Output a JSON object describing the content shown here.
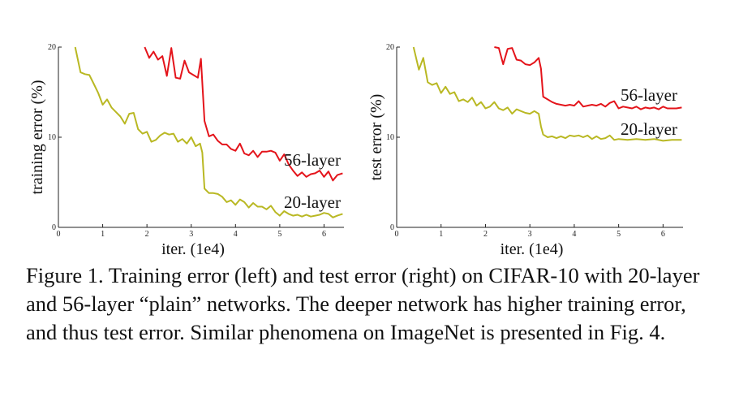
{
  "caption": "Figure 1. Training error (left) and test error (right) on CIFAR-10 with 20-layer and 56-layer “plain” networks. The deeper network has higher training error, and thus test error.  Similar phenomena on ImageNet is presented in Fig. 4.",
  "colors": {
    "red": "#e4141b",
    "olive": "#b9b823",
    "axis": "#222222"
  },
  "chart_data": [
    {
      "type": "line",
      "xlabel": "iter. (1e4)",
      "ylabel": "training error (%)",
      "xlim": [
        0,
        6.45
      ],
      "ylim": [
        0,
        20
      ],
      "xticks": [
        0,
        1,
        2,
        3,
        4,
        5,
        6
      ],
      "yticks": [
        0,
        10,
        20
      ],
      "grid": false,
      "series": [
        {
          "name": "56-layer",
          "color": "#e4141b",
          "x": [
            1.95,
            2.05,
            2.15,
            2.25,
            2.35,
            2.45,
            2.55,
            2.65,
            2.75,
            2.85,
            2.95,
            3.05,
            3.15,
            3.22,
            3.3,
            3.4,
            3.5,
            3.6,
            3.7,
            3.8,
            3.9,
            4.0,
            4.1,
            4.2,
            4.3,
            4.4,
            4.5,
            4.6,
            4.7,
            4.8,
            4.9,
            5.0,
            5.1,
            5.2,
            5.3,
            5.4,
            5.5,
            5.6,
            5.7,
            5.8,
            5.9,
            6.0,
            6.1,
            6.2,
            6.3,
            6.42
          ],
          "values": [
            20.0,
            18.8,
            19.5,
            18.6,
            19.0,
            16.8,
            19.9,
            16.6,
            16.5,
            18.5,
            17.2,
            16.9,
            16.6,
            18.7,
            11.8,
            10.1,
            10.3,
            9.6,
            9.2,
            9.2,
            8.7,
            8.5,
            9.3,
            8.2,
            8.0,
            8.5,
            7.8,
            8.4,
            8.4,
            8.5,
            8.3,
            7.4,
            8.1,
            7.0,
            6.3,
            5.7,
            6.1,
            5.6,
            5.9,
            6.0,
            6.3,
            5.6,
            6.2,
            5.2,
            5.8,
            6.0
          ]
        },
        {
          "name": "20-layer",
          "color": "#b9b823",
          "x": [
            0.38,
            0.5,
            0.6,
            0.7,
            0.8,
            0.9,
            1.0,
            1.1,
            1.2,
            1.3,
            1.4,
            1.5,
            1.6,
            1.7,
            1.8,
            1.9,
            2.0,
            2.1,
            2.2,
            2.3,
            2.4,
            2.5,
            2.6,
            2.7,
            2.8,
            2.9,
            3.0,
            3.1,
            3.2,
            3.25,
            3.3,
            3.4,
            3.5,
            3.6,
            3.7,
            3.8,
            3.9,
            4.0,
            4.1,
            4.2,
            4.3,
            4.4,
            4.5,
            4.6,
            4.7,
            4.8,
            4.9,
            5.0,
            5.1,
            5.2,
            5.3,
            5.4,
            5.5,
            5.6,
            5.7,
            5.8,
            5.9,
            6.0,
            6.1,
            6.2,
            6.3,
            6.42
          ],
          "values": [
            20.0,
            17.2,
            17.0,
            16.9,
            15.9,
            14.9,
            13.6,
            14.2,
            13.3,
            12.8,
            12.3,
            11.5,
            12.6,
            12.7,
            10.9,
            10.4,
            10.6,
            9.5,
            9.7,
            10.2,
            10.5,
            10.3,
            10.4,
            9.5,
            9.8,
            9.3,
            10.0,
            9.0,
            9.3,
            8.3,
            4.3,
            3.8,
            3.8,
            3.7,
            3.4,
            2.8,
            3.0,
            2.5,
            3.1,
            2.8,
            2.2,
            2.7,
            2.3,
            2.3,
            2.0,
            2.4,
            1.7,
            1.3,
            1.8,
            1.5,
            1.3,
            1.4,
            1.2,
            1.4,
            1.2,
            1.3,
            1.4,
            1.6,
            1.5,
            1.1,
            1.3,
            1.5
          ]
        }
      ]
    },
    {
      "type": "line",
      "xlabel": "iter. (1e4)",
      "ylabel": "test error (%)",
      "xlim": [
        0,
        6.45
      ],
      "ylim": [
        0,
        20
      ],
      "xticks": [
        0,
        1,
        2,
        3,
        4,
        5,
        6
      ],
      "yticks": [
        0,
        10,
        20
      ],
      "grid": false,
      "series": [
        {
          "name": "56-layer",
          "color": "#e4141b",
          "x": [
            2.2,
            2.3,
            2.4,
            2.5,
            2.6,
            2.7,
            2.8,
            2.9,
            3.0,
            3.1,
            3.2,
            3.25,
            3.3,
            3.4,
            3.5,
            3.6,
            3.7,
            3.8,
            3.9,
            4.0,
            4.1,
            4.2,
            4.3,
            4.4,
            4.5,
            4.6,
            4.7,
            4.8,
            4.9,
            5.0,
            5.1,
            5.2,
            5.3,
            5.4,
            5.5,
            5.6,
            5.7,
            5.8,
            5.9,
            6.0,
            6.1,
            6.2,
            6.3,
            6.42
          ],
          "values": [
            20.0,
            19.9,
            18.1,
            19.8,
            19.9,
            18.6,
            18.5,
            18.1,
            18.0,
            18.3,
            18.8,
            17.6,
            14.5,
            14.2,
            13.9,
            13.7,
            13.6,
            13.5,
            13.6,
            13.5,
            14.0,
            13.4,
            13.5,
            13.6,
            13.5,
            13.7,
            13.4,
            13.8,
            14.0,
            13.2,
            13.4,
            13.3,
            13.2,
            13.4,
            13.1,
            13.3,
            13.2,
            13.3,
            13.1,
            13.4,
            13.2,
            13.2,
            13.2,
            13.3
          ]
        },
        {
          "name": "20-layer",
          "color": "#b9b823",
          "x": [
            0.38,
            0.5,
            0.6,
            0.7,
            0.8,
            0.9,
            1.0,
            1.1,
            1.2,
            1.3,
            1.4,
            1.5,
            1.6,
            1.7,
            1.8,
            1.9,
            2.0,
            2.1,
            2.2,
            2.3,
            2.4,
            2.5,
            2.6,
            2.7,
            2.8,
            2.9,
            3.0,
            3.1,
            3.2,
            3.25,
            3.3,
            3.4,
            3.5,
            3.6,
            3.7,
            3.8,
            3.9,
            4.0,
            4.1,
            4.2,
            4.3,
            4.4,
            4.5,
            4.6,
            4.7,
            4.8,
            4.9,
            5.0,
            5.2,
            5.4,
            5.6,
            5.8,
            6.0,
            6.2,
            6.42
          ],
          "values": [
            20.0,
            17.5,
            18.8,
            16.1,
            15.8,
            16.0,
            14.9,
            15.6,
            14.8,
            15.0,
            14.0,
            14.2,
            13.9,
            14.4,
            13.5,
            13.9,
            13.2,
            13.4,
            13.9,
            13.2,
            13.0,
            13.3,
            12.6,
            13.1,
            12.9,
            12.7,
            12.6,
            12.9,
            12.6,
            11.2,
            10.3,
            10.0,
            10.1,
            9.9,
            10.1,
            9.9,
            10.2,
            10.1,
            10.2,
            10.0,
            10.2,
            9.8,
            10.1,
            9.8,
            9.9,
            10.2,
            9.7,
            9.8,
            9.7,
            9.8,
            9.7,
            9.8,
            9.6,
            9.7,
            9.7
          ]
        }
      ]
    }
  ]
}
